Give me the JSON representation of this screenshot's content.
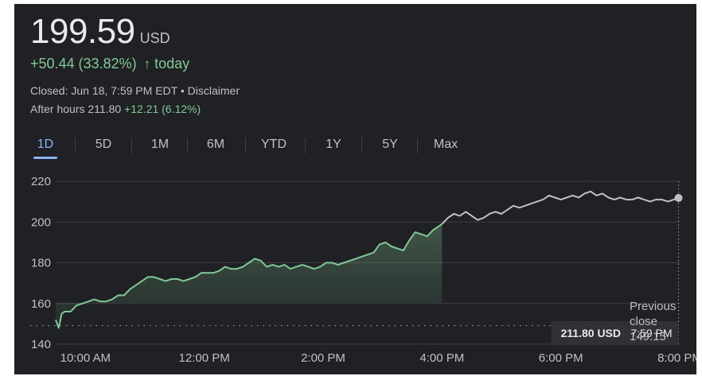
{
  "header": {
    "price": "199.59",
    "currency": "USD",
    "change": "+50.44 (33.82%)",
    "change_arrow": "↑",
    "change_suffix": "today",
    "closed_text": "Closed: Jun 18, 7:59 PM EDT",
    "bullet": "•",
    "disclaimer": "Disclaimer",
    "after_hours_label": "After hours 211.80",
    "after_hours_change": "+12.21 (6.12%)"
  },
  "tabs": [
    {
      "label": "1D",
      "active": true
    },
    {
      "label": "5D",
      "active": false
    },
    {
      "label": "1M",
      "active": false
    },
    {
      "label": "6M",
      "active": false
    },
    {
      "label": "YTD",
      "active": false
    },
    {
      "label": "1Y",
      "active": false
    },
    {
      "label": "5Y",
      "active": false
    },
    {
      "label": "Max",
      "active": false
    }
  ],
  "colors": {
    "up": "#81c995",
    "after_hours_line": "#bdc1c6",
    "accent": "#8ab4f8",
    "grid": "#3c4043",
    "background": "#202124"
  },
  "chart_data": {
    "type": "line",
    "x_unit": "hours",
    "ylim": [
      140,
      220
    ],
    "yticks": [
      140,
      160,
      180,
      200,
      220
    ],
    "xlim": [
      9.5,
      20.0
    ],
    "xticks": [
      {
        "x": 10,
        "label": "10:00 AM"
      },
      {
        "x": 12,
        "label": "12:00 PM"
      },
      {
        "x": 14,
        "label": "2:00 PM"
      },
      {
        "x": 16,
        "label": "4:00 PM"
      },
      {
        "x": 18,
        "label": "6:00 PM"
      },
      {
        "x": 20,
        "label": "8:00 PM"
      }
    ],
    "previous_close": {
      "value": 149.15,
      "label_line1": "Previous",
      "label_line2": "close",
      "value_label": "149.15"
    },
    "tooltip": {
      "value": "211.80 USD",
      "time": "7:59 PM"
    },
    "regular_session": {
      "x": [
        9.5,
        9.55,
        9.6,
        9.65,
        9.75,
        9.85,
        9.95,
        10.05,
        10.15,
        10.25,
        10.35,
        10.45,
        10.55,
        10.65,
        10.75,
        10.85,
        10.95,
        11.05,
        11.15,
        11.25,
        11.35,
        11.45,
        11.55,
        11.65,
        11.75,
        11.85,
        11.95,
        12.05,
        12.15,
        12.25,
        12.35,
        12.45,
        12.55,
        12.65,
        12.75,
        12.85,
        12.95,
        13.05,
        13.15,
        13.25,
        13.35,
        13.45,
        13.55,
        13.65,
        13.75,
        13.85,
        13.95,
        14.05,
        14.15,
        14.25,
        14.35,
        14.45,
        14.55,
        14.65,
        14.75,
        14.85,
        14.95,
        15.05,
        15.15,
        15.25,
        15.35,
        15.45,
        15.55,
        15.65,
        15.75,
        15.85,
        15.95,
        16.0
      ],
      "y": [
        152,
        148,
        155,
        156,
        156,
        159,
        160,
        161,
        162,
        161,
        161,
        162,
        164,
        164,
        167,
        169,
        171,
        173,
        173,
        172,
        171,
        172,
        172,
        171,
        172,
        173,
        175,
        175,
        175,
        176,
        178,
        177,
        177,
        178,
        180,
        182,
        181,
        178,
        179,
        178,
        179,
        177,
        178,
        179,
        178,
        177,
        178,
        180,
        180,
        179,
        180,
        181,
        182,
        183,
        184,
        185,
        189,
        190,
        188,
        187,
        186,
        191,
        195,
        194,
        193,
        196,
        198,
        199
      ]
    },
    "after_hours": {
      "x": [
        16.0,
        16.1,
        16.2,
        16.3,
        16.4,
        16.5,
        16.6,
        16.7,
        16.8,
        16.9,
        17.0,
        17.1,
        17.2,
        17.3,
        17.4,
        17.5,
        17.6,
        17.7,
        17.8,
        17.9,
        18.0,
        18.1,
        18.2,
        18.3,
        18.4,
        18.5,
        18.6,
        18.7,
        18.8,
        18.9,
        19.0,
        19.1,
        19.2,
        19.3,
        19.4,
        19.5,
        19.6,
        19.7,
        19.8,
        19.9,
        19.98
      ],
      "y": [
        199,
        202,
        204,
        203,
        205,
        203,
        201,
        202,
        204,
        205,
        204,
        206,
        208,
        207,
        208,
        209,
        210,
        211,
        213,
        212,
        211,
        212,
        213,
        212,
        214,
        215,
        213,
        214,
        212,
        211,
        212,
        211,
        211,
        212,
        211,
        210,
        211,
        211,
        210,
        211,
        211.8
      ]
    }
  }
}
